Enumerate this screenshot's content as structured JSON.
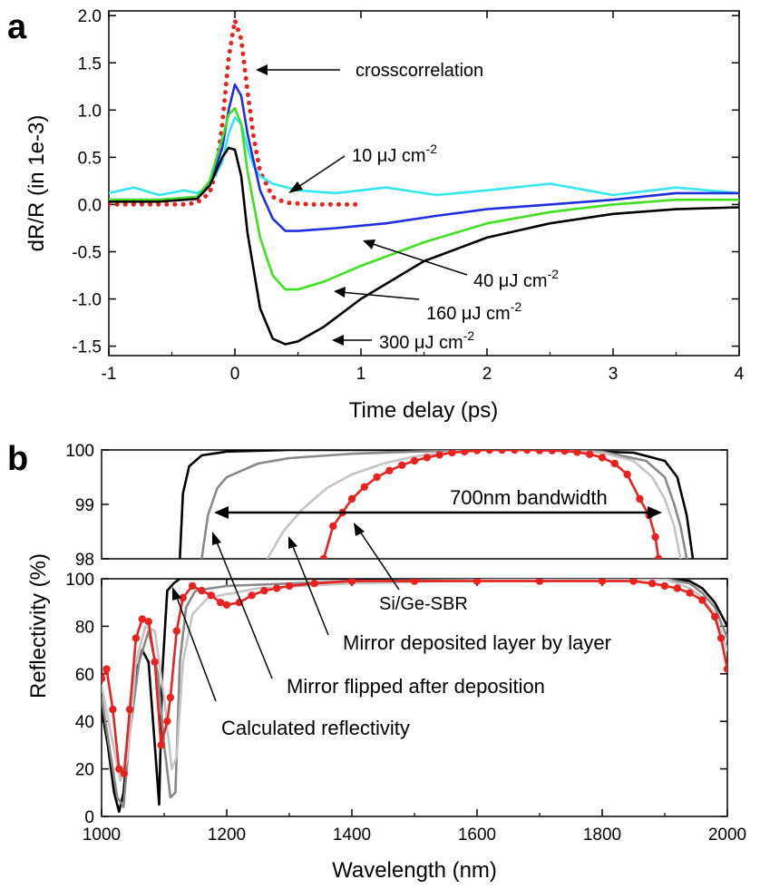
{
  "panel_a": {
    "letter": "a",
    "xlabel": "Time delay (ps)",
    "ylabel": "dR/R (in 1e-3)",
    "annotations": [
      {
        "id": "crosscorrelation",
        "text": "crosscorrelation"
      },
      {
        "id": "f10",
        "text": "10 μJ cm",
        "sup": "-2"
      },
      {
        "id": "f40",
        "text": "40 μJ cm",
        "sup": "-2"
      },
      {
        "id": "f160",
        "text": "160 μJ cm",
        "sup": "-2"
      },
      {
        "id": "f300",
        "text": "300 μJ cm",
        "sup": "-2"
      }
    ]
  },
  "panel_b": {
    "letter": "b",
    "xlabel": "Wavelength (nm)",
    "ylabel": "Reflectivity (%)",
    "annotations": [
      {
        "id": "bandwidth",
        "text": "700nm bandwidth"
      },
      {
        "id": "sbr",
        "text": "Si/Ge-SBR"
      },
      {
        "id": "layer",
        "text": "Mirror deposited layer by layer"
      },
      {
        "id": "flipped",
        "text": "Mirror flipped after deposition"
      },
      {
        "id": "calc",
        "text": "Calculated reflectivity"
      }
    ]
  },
  "chart_data": [
    {
      "type": "line",
      "xlabel": "Time delay (ps)",
      "ylabel": "dR/R (in 1e-3)",
      "xlim": [
        -1,
        4
      ],
      "ylim": [
        -1.6,
        2.05
      ],
      "xticks": [
        -1,
        0,
        1,
        2,
        3,
        4
      ],
      "yticks": [
        -1.5,
        -1.0,
        -0.5,
        0.0,
        0.5,
        1.0,
        1.5,
        2.0
      ],
      "ytick_labels": [
        "-1.5",
        "-1.0",
        "-0.5",
        "0.0",
        "0.5",
        "1.0",
        "1.5",
        "2.0"
      ],
      "series": [
        {
          "name": "crosscorrelation",
          "color": "#e8231f",
          "style": "dotted",
          "x": [
            -1.0,
            -0.4,
            -0.3,
            -0.2,
            -0.15,
            -0.1,
            -0.05,
            0.0,
            0.05,
            0.1,
            0.15,
            0.2,
            0.3,
            0.4,
            0.6,
            1.0
          ],
          "y": [
            0.0,
            0.0,
            0.02,
            0.12,
            0.35,
            0.85,
            1.55,
            1.95,
            1.75,
            1.2,
            0.7,
            0.35,
            0.08,
            0.02,
            0.0,
            0.0
          ]
        },
        {
          "name": "10 μJ cm-2",
          "color": "#33e6f0",
          "x": [
            -1.0,
            -0.8,
            -0.6,
            -0.4,
            -0.3,
            -0.2,
            -0.1,
            -0.05,
            0.0,
            0.05,
            0.1,
            0.15,
            0.2,
            0.3,
            0.5,
            0.8,
            1.2,
            1.6,
            2.0,
            2.5,
            3.0,
            3.5,
            4.0
          ],
          "y": [
            0.12,
            0.18,
            0.1,
            0.15,
            0.12,
            0.2,
            0.45,
            0.75,
            0.92,
            0.85,
            0.6,
            0.4,
            0.3,
            0.22,
            0.15,
            0.12,
            0.18,
            0.1,
            0.15,
            0.22,
            0.1,
            0.18,
            0.12
          ]
        },
        {
          "name": "40 μJ cm-2",
          "color": "#1f2ee0",
          "x": [
            -1.0,
            -0.6,
            -0.3,
            -0.2,
            -0.1,
            -0.05,
            0.0,
            0.05,
            0.1,
            0.2,
            0.3,
            0.4,
            0.5,
            0.8,
            1.2,
            1.6,
            2.0,
            2.5,
            3.0,
            3.5,
            4.0
          ],
          "y": [
            0.05,
            0.05,
            0.08,
            0.2,
            0.6,
            1.0,
            1.27,
            1.15,
            0.75,
            0.15,
            -0.15,
            -0.28,
            -0.28,
            -0.25,
            -0.2,
            -0.12,
            -0.05,
            0.0,
            0.05,
            0.12,
            0.12
          ]
        },
        {
          "name": "160 μJ cm-2",
          "color": "#3ee01f",
          "x": [
            -1.0,
            -0.6,
            -0.3,
            -0.2,
            -0.1,
            -0.05,
            0.0,
            0.05,
            0.1,
            0.2,
            0.3,
            0.4,
            0.5,
            0.7,
            1.0,
            1.5,
            2.0,
            2.5,
            3.0,
            3.5,
            4.0
          ],
          "y": [
            0.05,
            0.05,
            0.08,
            0.25,
            0.7,
            0.95,
            1.02,
            0.85,
            0.35,
            -0.35,
            -0.75,
            -0.9,
            -0.9,
            -0.82,
            -0.65,
            -0.4,
            -0.2,
            -0.08,
            0.0,
            0.05,
            0.05
          ]
        },
        {
          "name": "300 μJ cm-2",
          "color": "#000000",
          "x": [
            -1.0,
            -0.6,
            -0.3,
            -0.2,
            -0.1,
            -0.05,
            0.0,
            0.05,
            0.1,
            0.2,
            0.3,
            0.4,
            0.5,
            0.7,
            1.0,
            1.5,
            2.0,
            2.5,
            3.0,
            3.5,
            4.0
          ],
          "y": [
            0.03,
            0.03,
            0.06,
            0.2,
            0.5,
            0.6,
            0.58,
            0.3,
            -0.3,
            -1.1,
            -1.42,
            -1.48,
            -1.45,
            -1.3,
            -1.0,
            -0.6,
            -0.35,
            -0.2,
            -0.1,
            -0.05,
            -0.03
          ]
        }
      ]
    },
    {
      "type": "line",
      "xlabel": "Wavelength (nm)",
      "ylabel": "",
      "xlim": [
        1000,
        2000
      ],
      "ylim": [
        98,
        100
      ],
      "yticks": [
        98,
        99,
        100
      ],
      "ytick_labels": [
        "98",
        "99",
        "100"
      ],
      "series": [
        {
          "name": "Calculated reflectivity",
          "color": "#000000",
          "x": [
            1125,
            1130,
            1140,
            1160,
            1200,
            1300,
            1500,
            1700,
            1850,
            1900,
            1920,
            1935,
            1945
          ],
          "y": [
            98.0,
            99.2,
            99.7,
            99.9,
            99.97,
            100.0,
            100.0,
            100.0,
            99.95,
            99.8,
            99.5,
            98.8,
            98.0
          ]
        },
        {
          "name": "Mirror flipped after deposition",
          "color": "#888888",
          "x": [
            1160,
            1170,
            1185,
            1200,
            1250,
            1300,
            1400,
            1500,
            1600,
            1700,
            1800,
            1870,
            1900,
            1915,
            1925,
            1935
          ],
          "y": [
            98.0,
            98.8,
            99.3,
            99.5,
            99.75,
            99.85,
            99.93,
            99.97,
            100.0,
            100.0,
            99.97,
            99.8,
            99.5,
            99.0,
            98.6,
            98.0
          ]
        },
        {
          "name": "Mirror deposited layer by layer",
          "color": "#c4c4c4",
          "x": [
            1265,
            1290,
            1320,
            1360,
            1400,
            1450,
            1500,
            1550,
            1600,
            1700,
            1800,
            1850,
            1880,
            1900,
            1915,
            1925
          ],
          "y": [
            98.0,
            98.5,
            98.9,
            99.3,
            99.55,
            99.75,
            99.88,
            99.95,
            100.0,
            100.0,
            99.95,
            99.8,
            99.5,
            99.1,
            98.6,
            98.0
          ]
        },
        {
          "name": "Si/Ge-SBR",
          "color": "#e8231f",
          "markers": true,
          "x": [
            1355,
            1370,
            1385,
            1400,
            1420,
            1440,
            1460,
            1480,
            1500,
            1520,
            1540,
            1560,
            1580,
            1600,
            1620,
            1640,
            1660,
            1680,
            1700,
            1720,
            1740,
            1760,
            1780,
            1800,
            1820,
            1840,
            1860,
            1875,
            1885,
            1890
          ],
          "y": [
            98.0,
            98.6,
            98.85,
            99.1,
            99.32,
            99.5,
            99.62,
            99.72,
            99.8,
            99.86,
            99.91,
            99.95,
            99.97,
            99.99,
            100.0,
            100.0,
            100.0,
            100.0,
            99.99,
            99.99,
            99.98,
            99.96,
            99.92,
            99.86,
            99.75,
            99.55,
            99.1,
            98.8,
            98.4,
            98.0
          ]
        }
      ]
    },
    {
      "type": "line",
      "xlabel": "Wavelength (nm)",
      "ylabel": "Reflectivity (%)",
      "xlim": [
        1000,
        2000
      ],
      "ylim": [
        0,
        100
      ],
      "xticks": [
        1000,
        1200,
        1400,
        1600,
        1800,
        2000
      ],
      "yticks": [
        0,
        20,
        40,
        60,
        80,
        100
      ],
      "ytick_labels": [
        "0",
        "20",
        "40",
        "60",
        "80",
        "100"
      ],
      "series": [
        {
          "name": "Calculated reflectivity",
          "color": "#000000",
          "x": [
            1000,
            1010,
            1020,
            1028,
            1035,
            1045,
            1055,
            1065,
            1075,
            1085,
            1092,
            1097,
            1105,
            1115,
            1125,
            1140,
            1200,
            1400,
            1700,
            1900,
            1940,
            1960,
            1980,
            2000
          ],
          "y": [
            45,
            30,
            10,
            2,
            10,
            40,
            60,
            70,
            65,
            30,
            5,
            60,
            95,
            98,
            100,
            100,
            100,
            100,
            100,
            100,
            99,
            96,
            90,
            80
          ]
        },
        {
          "name": "Mirror flipped after deposition",
          "color": "#888888",
          "x": [
            1000,
            1012,
            1025,
            1035,
            1045,
            1060,
            1075,
            1090,
            1100,
            1110,
            1118,
            1125,
            1135,
            1150,
            1200,
            1400,
            1700,
            1900,
            1940,
            1960,
            1980,
            2000
          ],
          "y": [
            50,
            30,
            8,
            4,
            35,
            65,
            78,
            60,
            30,
            8,
            10,
            65,
            88,
            95,
            97,
            99,
            100,
            100,
            98,
            94,
            88,
            75
          ]
        },
        {
          "name": "Mirror deposited layer by layer",
          "color": "#c4c4c4",
          "x": [
            1000,
            1015,
            1030,
            1042,
            1055,
            1070,
            1085,
            1100,
            1112,
            1120,
            1130,
            1145,
            1170,
            1250,
            1400,
            1700,
            1900,
            1940,
            1960,
            1980,
            2000
          ],
          "y": [
            55,
            35,
            15,
            25,
            65,
            80,
            78,
            50,
            20,
            25,
            65,
            85,
            92,
            96,
            98,
            100,
            100,
            96,
            92,
            85,
            70
          ]
        },
        {
          "name": "Si/Ge-SBR",
          "color": "#e8231f",
          "markers": true,
          "x": [
            1000,
            1008,
            1018,
            1028,
            1036,
            1045,
            1055,
            1065,
            1075,
            1085,
            1095,
            1105,
            1110,
            1120,
            1130,
            1145,
            1160,
            1175,
            1190,
            1200,
            1220,
            1240,
            1260,
            1280,
            1300,
            1340,
            1400,
            1500,
            1600,
            1700,
            1800,
            1850,
            1880,
            1900,
            1920,
            1940,
            1960,
            1980,
            1990,
            2000
          ],
          "y": [
            58,
            62,
            45,
            20,
            18,
            45,
            75,
            83,
            82,
            65,
            30,
            40,
            50,
            78,
            92,
            97,
            95,
            93,
            90,
            89,
            90,
            93,
            95,
            96,
            97,
            98,
            99,
            99,
            99,
            99,
            99,
            99,
            98,
            97,
            96,
            94,
            91,
            84,
            75,
            62
          ]
        }
      ]
    }
  ]
}
